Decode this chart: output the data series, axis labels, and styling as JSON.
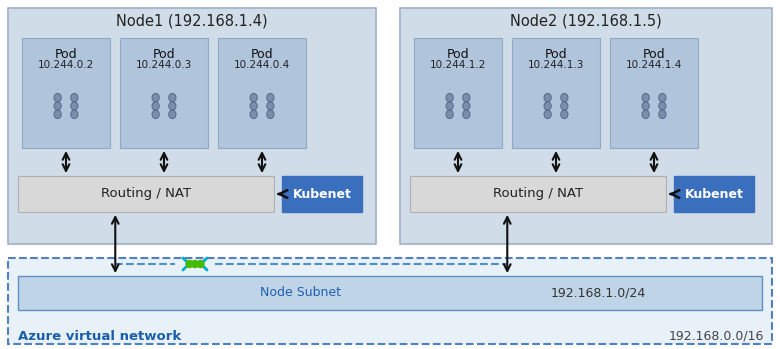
{
  "node1_title": "Node1 (192.168.1.4)",
  "node2_title": "Node2 (192.168.1.5)",
  "pods_node1": [
    "Pod",
    "Pod",
    "Pod"
  ],
  "pods_node1_ip": [
    "10.244.0.2",
    "10.244.0.3",
    "10.244.0.4"
  ],
  "pods_node2": [
    "Pod",
    "Pod",
    "Pod"
  ],
  "pods_node2_ip": [
    "10.244.1.2",
    "10.244.1.3",
    "10.244.1.4"
  ],
  "routing_label": "Routing / NAT",
  "kubenet_label": "Kubenet",
  "node_subnet_label": "Node Subnet",
  "node_subnet_ip": "192.168.1.0/24",
  "vnet_label": "Azure virtual network",
  "vnet_ip": "192.168.0.0/16",
  "bg_color": "#ffffff",
  "node_box_color": "#d0dce8",
  "node_box_edge": "#a0b0c8",
  "pod_box_color": "#b0c4dc",
  "pod_box_edge": "#90a8c4",
  "routing_box_color": "#d8d8d8",
  "routing_box_edge": "#b0b0b0",
  "kubenet_box_color": "#3a6fbd",
  "kubenet_text_color": "#ffffff",
  "subnet_box_color": "#c0d4e8",
  "subnet_box_edge": "#6090c0",
  "vnet_box_color": "#e8f0f8",
  "vnet_box_edge": "#5080c0",
  "vnet_text_color": "#1a5faa",
  "subnet_text_color": "#2060b0",
  "node_title_color": "#222222",
  "arrow_color": "#111111",
  "dashed_color": "#5090c0",
  "green_dot_color": "#44bb00",
  "cyan_bracket_color": "#00aacc",
  "pod_icon_color": "#7a8faa",
  "pod_icon_edge": "#556688"
}
